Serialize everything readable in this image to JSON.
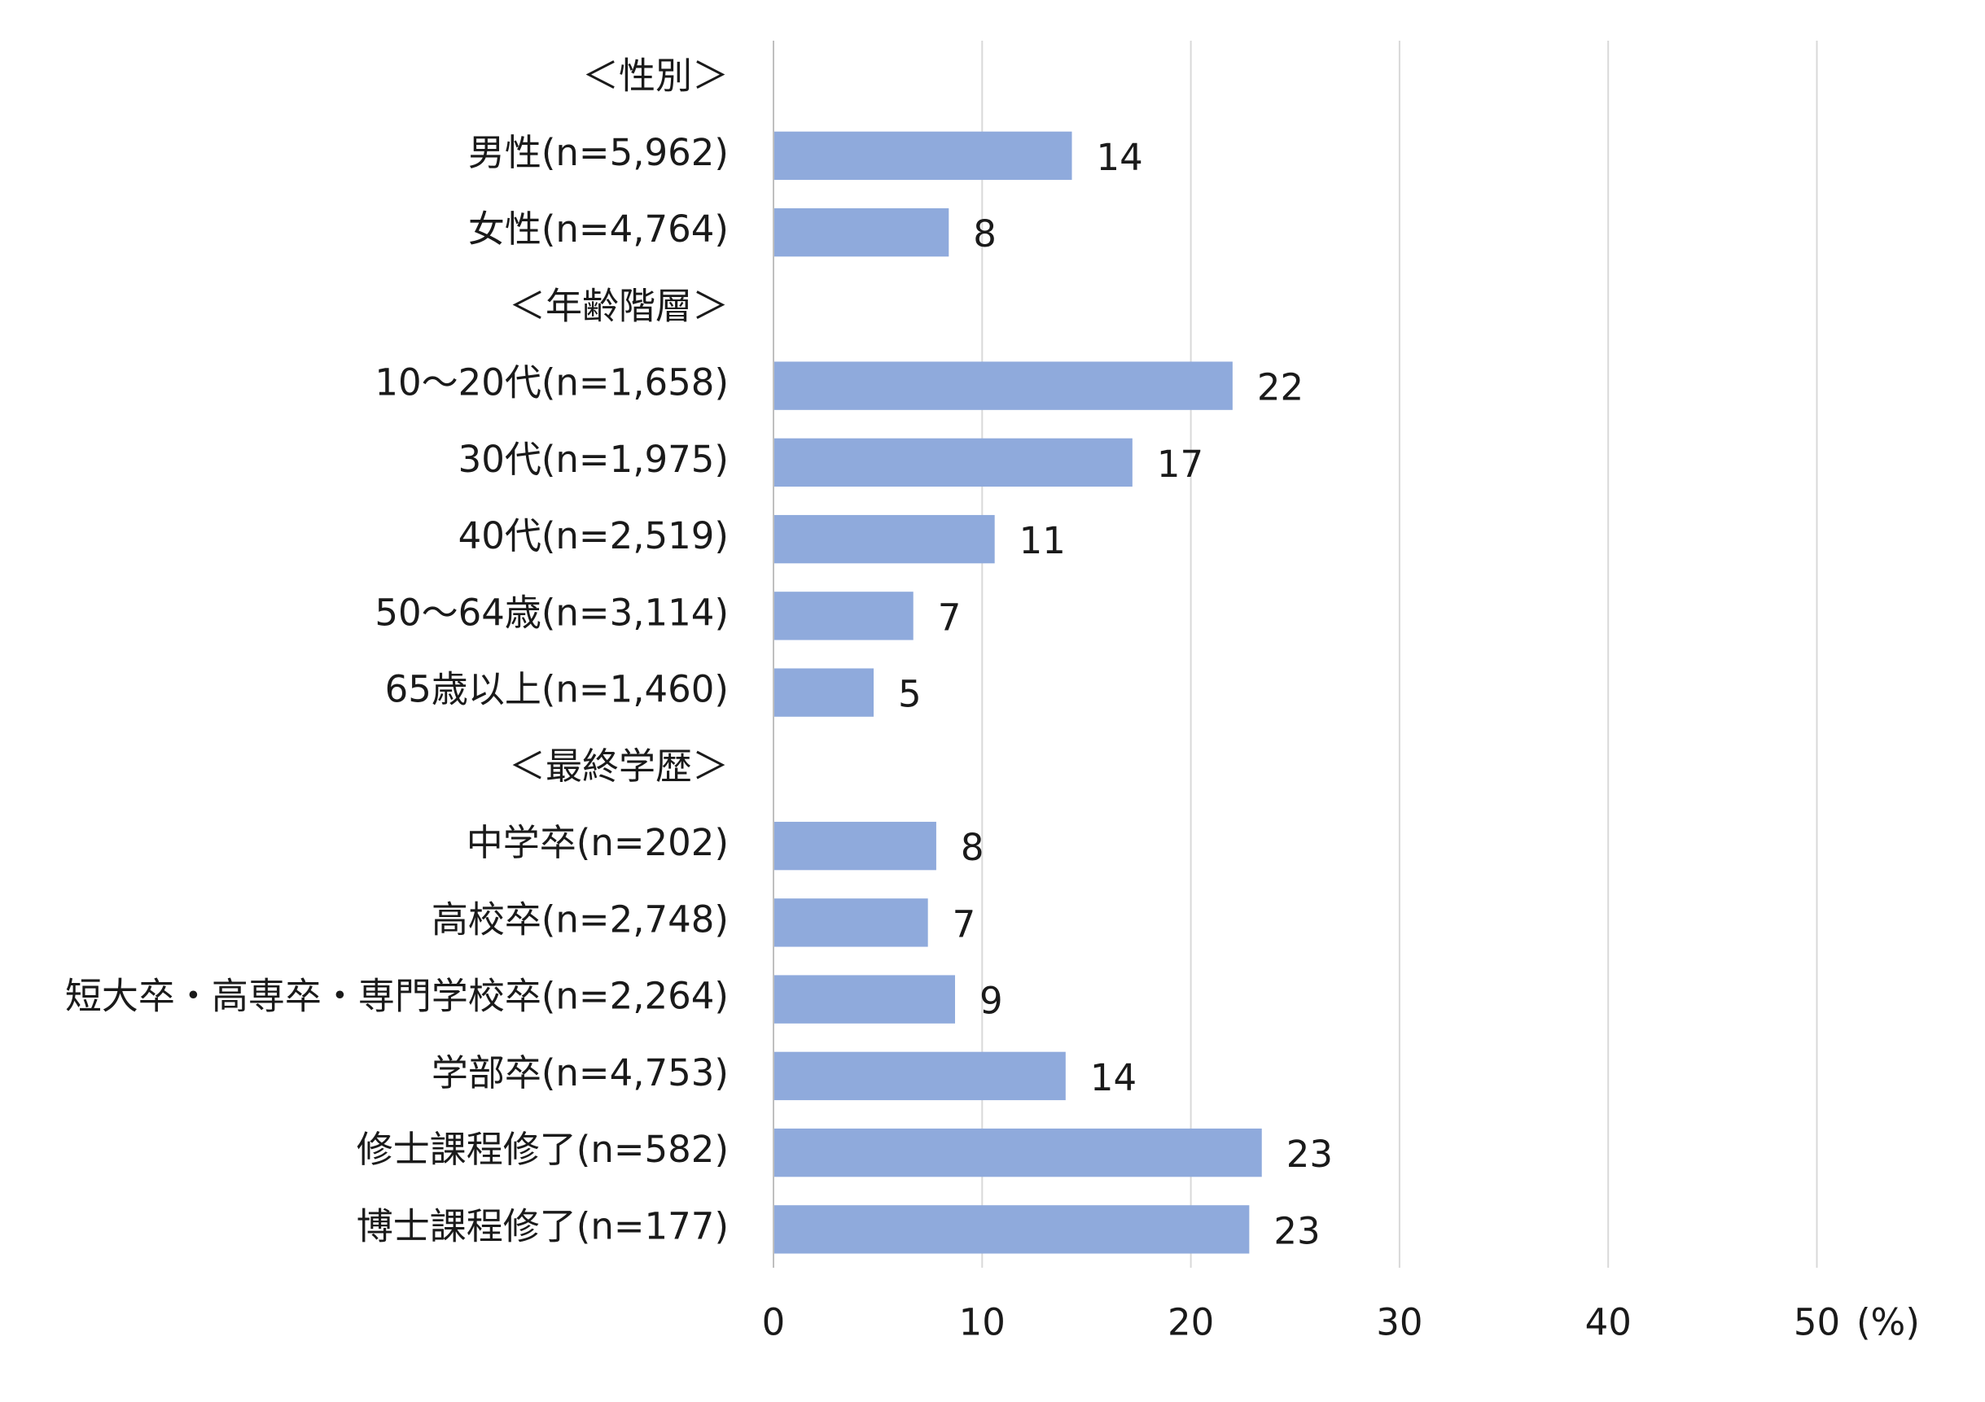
{
  "chart_data": {
    "type": "bar",
    "orientation": "horizontal",
    "categories": [
      "＜性別＞",
      "男性(n=5,962)",
      "女性(n=4,764)",
      "＜年齢階層＞",
      "10～20代(n=1,658)",
      "30代(n=1,975)",
      "40代(n=2,519)",
      "50～64歳(n=3,114)",
      "65歳以上(n=1,460)",
      "＜最終学歴＞",
      "中学卒(n=202)",
      "高校卒(n=2,748)",
      "短大卒・高専卒・専門学校卒(n=2,264)",
      "学部卒(n=4,753)",
      "修士課程修了(n=582)",
      "博士課程修了(n=177)"
    ],
    "series": [
      {
        "values": [
          null,
          14.3,
          8.4,
          null,
          22.0,
          17.2,
          10.6,
          6.7,
          4.8,
          null,
          7.8,
          7.4,
          8.7,
          14.0,
          23.4,
          22.8
        ]
      }
    ],
    "data_labels": [
      null,
      "14",
      "8",
      null,
      "22",
      "17",
      "11",
      "7",
      "5",
      null,
      "8",
      "7",
      "9",
      "14",
      "23",
      "23"
    ],
    "xlim": [
      0,
      50
    ],
    "x_ticks": [
      0,
      10,
      20,
      30,
      40,
      50
    ],
    "xlabel": "(%)",
    "grid": "vertical",
    "legend": "none",
    "colors": {
      "bar": "#8FAADC",
      "grid": "#D9D9D9",
      "axis": "#BFBFBF",
      "text": "#1A1A1A"
    }
  }
}
